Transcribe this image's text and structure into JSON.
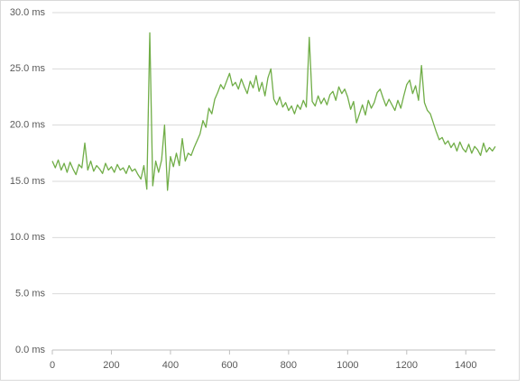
{
  "chart_data": {
    "type": "line",
    "x": [
      0,
      10,
      20,
      30,
      40,
      50,
      60,
      70,
      80,
      90,
      100,
      110,
      120,
      130,
      140,
      150,
      160,
      170,
      180,
      190,
      200,
      210,
      220,
      230,
      240,
      250,
      260,
      270,
      280,
      290,
      300,
      310,
      320,
      330,
      340,
      350,
      360,
      370,
      380,
      390,
      400,
      410,
      420,
      430,
      440,
      450,
      460,
      470,
      480,
      490,
      500,
      510,
      520,
      530,
      540,
      550,
      560,
      570,
      580,
      590,
      600,
      610,
      620,
      630,
      640,
      650,
      660,
      670,
      680,
      690,
      700,
      710,
      720,
      730,
      740,
      750,
      760,
      770,
      780,
      790,
      800,
      810,
      820,
      830,
      840,
      850,
      860,
      870,
      880,
      890,
      900,
      910,
      920,
      930,
      940,
      950,
      960,
      970,
      980,
      990,
      1000,
      1010,
      1020,
      1030,
      1040,
      1050,
      1060,
      1070,
      1080,
      1090,
      1100,
      1110,
      1120,
      1130,
      1140,
      1150,
      1160,
      1170,
      1180,
      1190,
      1200,
      1210,
      1220,
      1230,
      1240,
      1250,
      1260,
      1270,
      1280,
      1290,
      1300,
      1310,
      1320,
      1330,
      1340,
      1350,
      1360,
      1370,
      1380,
      1390,
      1400,
      1410,
      1420,
      1430,
      1440,
      1450,
      1460,
      1470,
      1480,
      1490,
      1500
    ],
    "series": [
      {
        "color": "#70ad47",
        "values": [
          16.8,
          16.2,
          16.9,
          16.0,
          16.6,
          15.8,
          16.7,
          16.1,
          15.6,
          16.5,
          16.2,
          18.4,
          16.0,
          16.8,
          15.9,
          16.4,
          16.1,
          15.7,
          16.6,
          16.0,
          16.3,
          15.8,
          16.5,
          16.0,
          16.2,
          15.7,
          16.4,
          15.9,
          16.1,
          15.6,
          15.2,
          16.4,
          14.3,
          28.2,
          14.6,
          16.8,
          15.8,
          16.9,
          20.0,
          14.2,
          17.2,
          16.3,
          17.5,
          16.4,
          18.8,
          16.8,
          17.5,
          17.3,
          18.0,
          18.6,
          19.2,
          20.4,
          19.8,
          21.5,
          21.0,
          22.3,
          22.9,
          23.6,
          23.2,
          23.9,
          24.6,
          23.5,
          23.8,
          23.2,
          24.1,
          23.4,
          22.8,
          23.9,
          23.3,
          24.4,
          23.0,
          23.8,
          22.6,
          24.2,
          25.0,
          22.3,
          21.8,
          22.5,
          21.6,
          22.0,
          21.3,
          21.7,
          21.0,
          21.8,
          21.4,
          22.2,
          21.6,
          27.8,
          22.1,
          21.7,
          22.6,
          21.9,
          22.4,
          21.8,
          22.7,
          23.0,
          22.2,
          23.4,
          22.8,
          23.2,
          22.5,
          21.4,
          22.1,
          20.2,
          21.0,
          21.8,
          20.9,
          22.2,
          21.5,
          22.0,
          22.9,
          23.2,
          22.4,
          21.7,
          22.3,
          21.8,
          21.3,
          22.2,
          21.5,
          22.6,
          23.6,
          24.0,
          22.8,
          23.5,
          22.2,
          25.3,
          22.0,
          21.3,
          21.0,
          20.2,
          19.4,
          18.7,
          18.9,
          18.3,
          18.6,
          18.0,
          18.4,
          17.7,
          18.5,
          17.9,
          17.6,
          18.3,
          17.5,
          18.1,
          17.8,
          17.3,
          18.4,
          17.6,
          18.0,
          17.7,
          18.1
        ]
      }
    ],
    "xlim": [
      0,
      1500
    ],
    "xticks": [
      0,
      200,
      400,
      600,
      800,
      1000,
      1200,
      1400
    ],
    "ylim": [
      0,
      30
    ],
    "yticks": [
      {
        "value": 0,
        "label": "0.0 ms"
      },
      {
        "value": 5,
        "label": "5.0 ms"
      },
      {
        "value": 10,
        "label": "10.0 ms"
      },
      {
        "value": 15,
        "label": "15.0 ms"
      },
      {
        "value": 20,
        "label": "20.0 ms"
      },
      {
        "value": 25,
        "label": "25.0 ms"
      },
      {
        "value": 30,
        "label": "30.0 ms"
      }
    ],
    "grid": true
  }
}
